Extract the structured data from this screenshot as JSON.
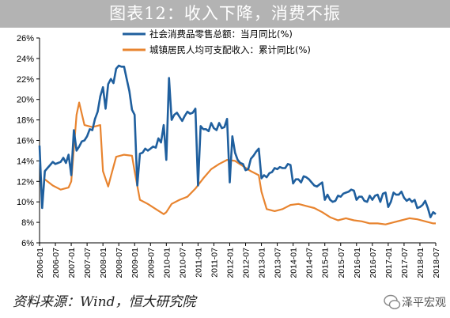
{
  "page": {
    "title": "图表12：收入下降，消费不振",
    "source": "资料来源：Wind，恒大研究院",
    "watermark": "泽平宏观"
  },
  "chart_data": {
    "type": "line",
    "title": "图表12：收入下降，消费不振",
    "xlabel": "",
    "ylabel": "",
    "ylim": [
      6,
      26
    ],
    "y_ticks": [
      "6%",
      "8%",
      "10%",
      "12%",
      "14%",
      "16%",
      "18%",
      "20%",
      "22%",
      "24%",
      "26%"
    ],
    "x_range": [
      "2006-01",
      "2018-07"
    ],
    "x_ticks": [
      "2006-01",
      "2006-07",
      "2007-01",
      "2007-07",
      "2008-01",
      "2008-07",
      "2009-01",
      "2009-07",
      "2010-01",
      "2010-07",
      "2011-01",
      "2011-07",
      "2012-01",
      "2012-07",
      "2013-01",
      "2013-07",
      "2014-01",
      "2014-07",
      "2015-01",
      "2015-07",
      "2016-01",
      "2016-07",
      "2017-01",
      "2017-07",
      "2018-01",
      "2018-07"
    ],
    "grid": false,
    "legend_position": "top-center",
    "series": [
      {
        "name": "社会消费品零售总额：当月同比(%)",
        "color": "#1f5f9e",
        "points": [
          [
            "2006-01",
            15.5
          ],
          [
            "2006-02",
            9.4
          ],
          [
            "2006-03",
            13.0
          ],
          [
            "2006-04",
            13.3
          ],
          [
            "2006-05",
            13.6
          ],
          [
            "2006-06",
            13.9
          ],
          [
            "2006-07",
            13.7
          ],
          [
            "2006-08",
            13.8
          ],
          [
            "2006-09",
            13.9
          ],
          [
            "2006-10",
            14.3
          ],
          [
            "2006-11",
            13.8
          ],
          [
            "2006-12",
            14.6
          ],
          [
            "2007-01",
            12.6
          ],
          [
            "2007-02",
            17.0
          ],
          [
            "2007-03",
            15.0
          ],
          [
            "2007-04",
            15.4
          ],
          [
            "2007-05",
            15.9
          ],
          [
            "2007-06",
            16.0
          ],
          [
            "2007-07",
            16.4
          ],
          [
            "2007-08",
            17.1
          ],
          [
            "2007-09",
            17.0
          ],
          [
            "2007-10",
            18.1
          ],
          [
            "2007-11",
            18.8
          ],
          [
            "2007-12",
            20.3
          ],
          [
            "2008-01",
            21.2
          ],
          [
            "2008-02",
            19.1
          ],
          [
            "2008-03",
            21.5
          ],
          [
            "2008-04",
            22.0
          ],
          [
            "2008-05",
            21.6
          ],
          [
            "2008-06",
            23.0
          ],
          [
            "2008-07",
            23.3
          ],
          [
            "2008-08",
            23.2
          ],
          [
            "2008-09",
            23.2
          ],
          [
            "2008-10",
            22.0
          ],
          [
            "2008-11",
            20.8
          ],
          [
            "2008-12",
            19.0
          ],
          [
            "2009-01",
            18.5
          ],
          [
            "2009-02",
            11.6
          ],
          [
            "2009-03",
            14.7
          ],
          [
            "2009-04",
            14.8
          ],
          [
            "2009-05",
            15.2
          ],
          [
            "2009-06",
            15.0
          ],
          [
            "2009-07",
            15.2
          ],
          [
            "2009-08",
            15.4
          ],
          [
            "2009-09",
            15.3
          ],
          [
            "2009-10",
            16.2
          ],
          [
            "2009-11",
            15.8
          ],
          [
            "2009-12",
            17.5
          ],
          [
            "2010-01",
            14.1
          ],
          [
            "2010-02",
            22.1
          ],
          [
            "2010-03",
            18.0
          ],
          [
            "2010-04",
            18.5
          ],
          [
            "2010-05",
            18.7
          ],
          [
            "2010-06",
            18.3
          ],
          [
            "2010-07",
            17.9
          ],
          [
            "2010-08",
            18.4
          ],
          [
            "2010-09",
            18.8
          ],
          [
            "2010-10",
            18.6
          ],
          [
            "2010-11",
            18.7
          ],
          [
            "2010-12",
            19.1
          ],
          [
            "2011-01",
            11.6
          ],
          [
            "2011-02",
            17.4
          ],
          [
            "2011-03",
            17.1
          ],
          [
            "2011-04",
            17.1
          ],
          [
            "2011-05",
            16.9
          ],
          [
            "2011-06",
            17.7
          ],
          [
            "2011-07",
            17.2
          ],
          [
            "2011-08",
            17.0
          ],
          [
            "2011-09",
            17.7
          ],
          [
            "2011-10",
            17.2
          ],
          [
            "2011-11",
            17.3
          ],
          [
            "2011-12",
            18.1
          ],
          [
            "2012-01",
            11.9
          ],
          [
            "2012-02",
            16.4
          ],
          [
            "2012-03",
            14.8
          ],
          [
            "2012-04",
            14.1
          ],
          [
            "2012-05",
            13.8
          ],
          [
            "2012-06",
            13.7
          ],
          [
            "2012-07",
            13.1
          ],
          [
            "2012-08",
            13.2
          ],
          [
            "2012-09",
            14.2
          ],
          [
            "2012-10",
            14.5
          ],
          [
            "2012-11",
            14.9
          ],
          [
            "2012-12",
            15.2
          ],
          [
            "2013-01",
            12.3
          ],
          [
            "2013-02",
            12.6
          ],
          [
            "2013-03",
            12.4
          ],
          [
            "2013-04",
            12.8
          ],
          [
            "2013-05",
            12.9
          ],
          [
            "2013-06",
            13.3
          ],
          [
            "2013-07",
            13.2
          ],
          [
            "2013-08",
            13.4
          ],
          [
            "2013-09",
            13.3
          ],
          [
            "2013-10",
            13.3
          ],
          [
            "2013-11",
            13.7
          ],
          [
            "2013-12",
            13.6
          ],
          [
            "2014-01",
            11.8
          ],
          [
            "2014-02",
            12.2
          ],
          [
            "2014-03",
            12.2
          ],
          [
            "2014-04",
            11.9
          ],
          [
            "2014-05",
            12.5
          ],
          [
            "2014-06",
            12.4
          ],
          [
            "2014-07",
            12.2
          ],
          [
            "2014-08",
            11.9
          ],
          [
            "2014-09",
            11.6
          ],
          [
            "2014-10",
            11.5
          ],
          [
            "2014-11",
            11.7
          ],
          [
            "2014-12",
            11.9
          ],
          [
            "2015-01",
            10.2
          ],
          [
            "2015-02",
            10.7
          ],
          [
            "2015-03",
            10.2
          ],
          [
            "2015-04",
            10.0
          ],
          [
            "2015-05",
            10.1
          ],
          [
            "2015-06",
            10.6
          ],
          [
            "2015-07",
            10.5
          ],
          [
            "2015-08",
            10.8
          ],
          [
            "2015-09",
            10.9
          ],
          [
            "2015-10",
            11.0
          ],
          [
            "2015-11",
            11.2
          ],
          [
            "2015-12",
            11.1
          ],
          [
            "2016-01",
            10.2
          ],
          [
            "2016-02",
            10.5
          ],
          [
            "2016-03",
            10.5
          ],
          [
            "2016-04",
            10.1
          ],
          [
            "2016-05",
            10.0
          ],
          [
            "2016-06",
            10.6
          ],
          [
            "2016-07",
            10.2
          ],
          [
            "2016-08",
            10.6
          ],
          [
            "2016-09",
            10.7
          ],
          [
            "2016-10",
            10.0
          ],
          [
            "2016-11",
            10.8
          ],
          [
            "2016-12",
            10.9
          ],
          [
            "2017-01",
            9.5
          ],
          [
            "2017-02",
            10.0
          ],
          [
            "2017-03",
            10.9
          ],
          [
            "2017-04",
            10.7
          ],
          [
            "2017-05",
            10.7
          ],
          [
            "2017-06",
            11.0
          ],
          [
            "2017-07",
            10.4
          ],
          [
            "2017-08",
            10.1
          ],
          [
            "2017-09",
            10.3
          ],
          [
            "2017-10",
            10.0
          ],
          [
            "2017-11",
            10.2
          ],
          [
            "2017-12",
            9.4
          ],
          [
            "2018-01",
            9.5
          ],
          [
            "2018-02",
            9.7
          ],
          [
            "2018-03",
            10.1
          ],
          [
            "2018-04",
            9.4
          ],
          [
            "2018-05",
            8.5
          ],
          [
            "2018-06",
            9.0
          ],
          [
            "2018-07",
            8.8
          ]
        ]
      },
      {
        "name": "城镇居民人均可支配收入：累计同比(%)",
        "color": "#e8842f",
        "points": [
          [
            "2006-03",
            12.2
          ],
          [
            "2006-06",
            11.6
          ],
          [
            "2006-09",
            11.2
          ],
          [
            "2006-12",
            11.4
          ],
          [
            "2007-01",
            12.0
          ],
          [
            "2007-03",
            18.5
          ],
          [
            "2007-04",
            19.7
          ],
          [
            "2007-06",
            17.5
          ],
          [
            "2007-09",
            17.3
          ],
          [
            "2007-12",
            17.5
          ],
          [
            "2008-01",
            13.0
          ],
          [
            "2008-03",
            11.5
          ],
          [
            "2008-04",
            12.5
          ],
          [
            "2008-06",
            14.4
          ],
          [
            "2008-09",
            14.6
          ],
          [
            "2008-12",
            14.5
          ],
          [
            "2009-01",
            13.0
          ],
          [
            "2009-03",
            10.2
          ],
          [
            "2009-06",
            9.8
          ],
          [
            "2009-09",
            9.3
          ],
          [
            "2009-12",
            8.8
          ],
          [
            "2010-01",
            9.0
          ],
          [
            "2010-03",
            9.8
          ],
          [
            "2010-06",
            10.2
          ],
          [
            "2010-09",
            10.5
          ],
          [
            "2010-12",
            11.3
          ],
          [
            "2011-03",
            12.3
          ],
          [
            "2011-06",
            13.2
          ],
          [
            "2011-09",
            13.7
          ],
          [
            "2011-12",
            14.1
          ],
          [
            "2012-03",
            14.0
          ],
          [
            "2012-06",
            13.5
          ],
          [
            "2012-09",
            13.0
          ],
          [
            "2012-12",
            12.6
          ],
          [
            "2013-01",
            11.0
          ],
          [
            "2013-03",
            9.3
          ],
          [
            "2013-06",
            9.1
          ],
          [
            "2013-09",
            9.3
          ],
          [
            "2013-12",
            9.7
          ],
          [
            "2014-03",
            9.8
          ],
          [
            "2014-06",
            9.6
          ],
          [
            "2014-09",
            9.4
          ],
          [
            "2014-12",
            9.0
          ],
          [
            "2015-03",
            8.5
          ],
          [
            "2015-06",
            8.2
          ],
          [
            "2015-09",
            8.4
          ],
          [
            "2015-12",
            8.2
          ],
          [
            "2016-03",
            8.1
          ],
          [
            "2016-06",
            7.9
          ],
          [
            "2016-09",
            7.9
          ],
          [
            "2016-12",
            7.8
          ],
          [
            "2017-03",
            8.0
          ],
          [
            "2017-06",
            8.2
          ],
          [
            "2017-09",
            8.4
          ],
          [
            "2017-12",
            8.3
          ],
          [
            "2018-03",
            8.1
          ],
          [
            "2018-06",
            7.9
          ],
          [
            "2018-07",
            7.9
          ]
        ]
      }
    ]
  }
}
